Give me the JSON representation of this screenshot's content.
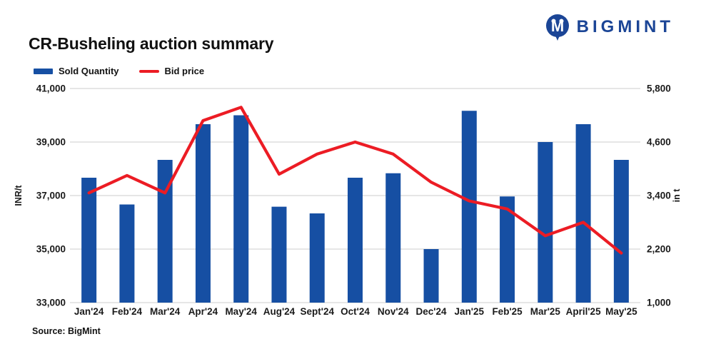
{
  "header": {
    "title": "CR-Busheling auction summary",
    "logo_text": "BIGMINT"
  },
  "legend": {
    "items": [
      {
        "label": "Sold Quantity",
        "type": "bar"
      },
      {
        "label": "Bid price",
        "type": "line"
      }
    ]
  },
  "source": "Source: BigMint",
  "colors": {
    "bar": "#164FA3",
    "line": "#EC1C24",
    "grid": "#D8D8D8",
    "axis_text": "#1A1A1A",
    "logo_blue": "#1B4596"
  },
  "chart_data": {
    "type": "bar",
    "subtype": "bar-and-line-dual-axis",
    "title": "CR-Busheling auction summary",
    "categories": [
      "Jan'24",
      "Feb'24",
      "Mar'24",
      "Apr'24",
      "May'24",
      "Aug'24",
      "Sept'24",
      "Oct'24",
      "Nov'24",
      "Dec'24",
      "Jan'25",
      "Feb'25",
      "Mar'25",
      "April'25",
      "May'25"
    ],
    "series": [
      {
        "name": "Sold Quantity",
        "type": "bar",
        "axis": "right",
        "values": [
          3800,
          3200,
          4200,
          5000,
          5200,
          3150,
          3000,
          3800,
          3900,
          2200,
          5300,
          3380,
          4600,
          5000,
          4200
        ]
      },
      {
        "name": "Bid price",
        "type": "line",
        "axis": "left",
        "values": [
          37100,
          37750,
          37100,
          39800,
          40300,
          37800,
          38550,
          39000,
          38550,
          37500,
          36800,
          36500,
          35500,
          36000,
          34850
        ]
      }
    ],
    "left_axis": {
      "title": "INR/t",
      "min": 33000,
      "max": 41000,
      "tick_labels_top_to_bottom": [
        "41,000",
        "39,000",
        "37,000",
        "35,000",
        "33,000"
      ]
    },
    "right_axis": {
      "title": "in t",
      "min": 1000,
      "max": 5800,
      "tick_labels_top_to_bottom": [
        "5,800",
        "4,600",
        "3,400",
        "2,200",
        "1,000"
      ]
    },
    "grid": "horizontal",
    "legend_position": "top-left"
  }
}
